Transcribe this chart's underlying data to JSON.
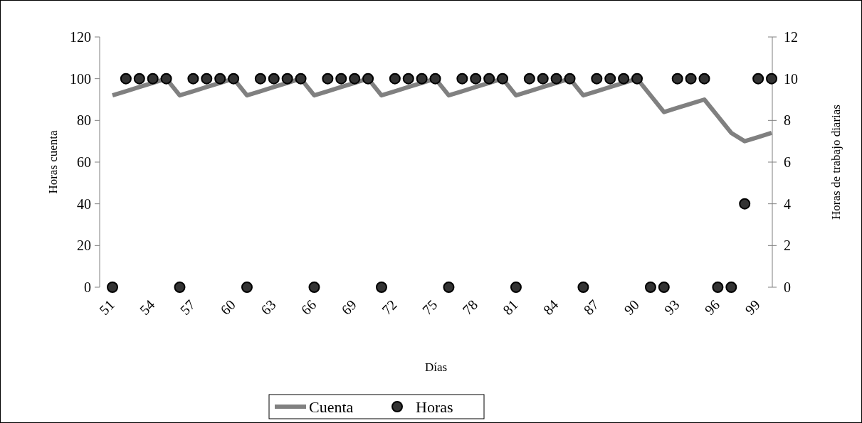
{
  "chart_data": {
    "type": "line",
    "xlabel": "Días",
    "ylabel": "Horas cuenta",
    "y2label": "Horas de trabajo diarias",
    "categories": [
      "51",
      null,
      null,
      "54",
      null,
      null,
      "57",
      null,
      null,
      "60",
      null,
      null,
      "63",
      null,
      null,
      "66",
      null,
      null,
      "69",
      null,
      null,
      "72",
      null,
      null,
      "75",
      null,
      null,
      "78",
      null,
      null,
      "81",
      null,
      null,
      "84",
      null,
      null,
      "87",
      null,
      null,
      "90",
      null,
      null,
      "93",
      null,
      null,
      "96",
      null,
      null,
      "99",
      null
    ],
    "series": [
      {
        "name": "Cuenta",
        "color": "#808080",
        "values": [
          92,
          94,
          96,
          98,
          100,
          92,
          94,
          96,
          98,
          100,
          92,
          94,
          96,
          98,
          100,
          92,
          94,
          96,
          98,
          100,
          92,
          94,
          96,
          98,
          100,
          92,
          94,
          96,
          98,
          100,
          92,
          94,
          96,
          98,
          100,
          92,
          94,
          96,
          98,
          100,
          92,
          84,
          86,
          88,
          90,
          82,
          74,
          70,
          72,
          74
        ]
      },
      {
        "name": "Horas",
        "type": "scatter",
        "axis": "y2",
        "color": "#333333",
        "marker": "circle",
        "values": [
          0,
          10,
          10,
          10,
          10,
          0,
          10,
          10,
          10,
          10,
          0,
          10,
          10,
          10,
          10,
          0,
          10,
          10,
          10,
          10,
          0,
          10,
          10,
          10,
          10,
          0,
          10,
          10,
          10,
          10,
          0,
          10,
          10,
          10,
          10,
          0,
          10,
          10,
          10,
          10,
          0,
          0,
          10,
          10,
          10,
          0,
          0,
          4,
          10,
          10
        ]
      }
    ],
    "ylim": [
      0,
      120
    ],
    "yticks": [
      0,
      20,
      40,
      60,
      80,
      100,
      120
    ],
    "y2lim": [
      0,
      12
    ],
    "y2ticks": [
      0,
      2,
      4,
      6,
      8,
      10,
      12
    ],
    "grid": false,
    "legend": "bottom"
  }
}
